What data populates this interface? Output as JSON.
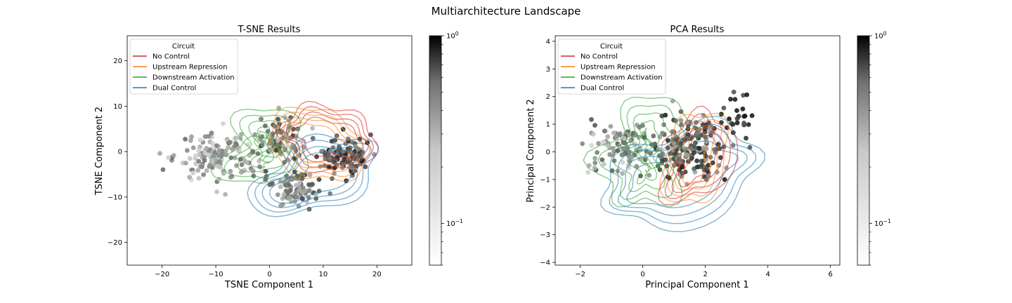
{
  "figure": {
    "title": "Multiarchitecture Landscape"
  },
  "legend_title": "Circuit",
  "colors": {
    "No Control": "#d62728",
    "Upstream Repression": "#ff7f0e",
    "Downstream Activation": "#2ca02c",
    "Dual Control": "#1f77b4",
    "point_dark": "#1a1a1a",
    "point_light": "#e6e6e6"
  },
  "chart_data": [
    {
      "type": "scatter",
      "title": "T-SNE Results",
      "xlabel": "TSNE Component 1",
      "ylabel": "TSNE Component 2",
      "xlim": [
        -26.5,
        26.5
      ],
      "ylim": [
        -25,
        25.5
      ],
      "xticks": [
        -20,
        -10,
        0,
        10,
        20
      ],
      "yticks": [
        -20,
        -10,
        0,
        10,
        20
      ],
      "legend_placement": "top-left",
      "series": [
        {
          "name": "No Control",
          "centers": [
            [
              14,
              2
            ],
            [
              8,
              4
            ]
          ],
          "spread": [
            6,
            7
          ]
        },
        {
          "name": "Upstream Repression",
          "centers": [
            [
              11,
              0
            ],
            [
              7,
              3
            ]
          ],
          "spread": [
            7,
            8
          ]
        },
        {
          "name": "Downstream Activation",
          "centers": [
            [
              -8,
              2
            ],
            [
              6,
              0
            ]
          ],
          "spread": [
            14,
            9
          ]
        },
        {
          "name": "Dual Control",
          "centers": [
            [
              12,
              -2
            ],
            [
              5,
              -9
            ]
          ],
          "spread": [
            8,
            8
          ]
        }
      ],
      "point_clusters": [
        {
          "center": [
            -10,
            -1
          ],
          "spread": [
            7,
            5
          ],
          "count": 150,
          "density": [
            0.1,
            0.6
          ]
        },
        {
          "center": [
            2,
            3
          ],
          "spread": [
            4,
            4
          ],
          "count": 90,
          "density": [
            0.2,
            0.9
          ]
        },
        {
          "center": [
            14,
            -1
          ],
          "spread": [
            4,
            4
          ],
          "count": 130,
          "density": [
            0.4,
            1.0
          ]
        },
        {
          "center": [
            5,
            -8
          ],
          "spread": [
            5,
            4
          ],
          "count": 90,
          "density": [
            0.2,
            0.8
          ]
        }
      ],
      "colorbar": {
        "scale": "log",
        "range": [
          0.06,
          1.0
        ],
        "ticks": [
          "10^0",
          "10^-1"
        ]
      }
    },
    {
      "type": "scatter",
      "title": "PCA Results",
      "xlabel": "Principal Component 1",
      "ylabel": "Principal Component 2",
      "xlim": [
        -2.8,
        6.3
      ],
      "ylim": [
        -4.1,
        4.2
      ],
      "xticks": [
        -2,
        0,
        2,
        4,
        6
      ],
      "yticks": [
        -4,
        -3,
        -2,
        -1,
        0,
        1,
        2,
        3,
        4
      ],
      "legend_placement": "top-left",
      "series": [
        {
          "name": "No Control",
          "centers": [
            [
              1.5,
              0.2
            ],
            [
              2.0,
              -0.6
            ]
          ],
          "spread": [
            1.4,
            1.6
          ]
        },
        {
          "name": "Upstream Repression",
          "centers": [
            [
              1.2,
              0.0
            ],
            [
              2.2,
              -0.5
            ]
          ],
          "spread": [
            1.5,
            1.7
          ]
        },
        {
          "name": "Downstream Activation",
          "centers": [
            [
              -1.0,
              0.3
            ],
            [
              1.2,
              -0.3
            ]
          ],
          "spread": [
            2.6,
            1.9
          ]
        },
        {
          "name": "Dual Control",
          "centers": [
            [
              2.0,
              -0.3
            ],
            [
              0.5,
              -1.5
            ]
          ],
          "spread": [
            1.8,
            1.7
          ]
        }
      ],
      "point_clusters": [
        {
          "center": [
            -0.6,
            0.2
          ],
          "spread": [
            1.0,
            0.8
          ],
          "count": 110,
          "density": [
            0.1,
            0.7
          ]
        },
        {
          "center": [
            1.5,
            0.0
          ],
          "spread": [
            1.0,
            1.1
          ],
          "count": 190,
          "density": [
            0.3,
            0.95
          ]
        },
        {
          "center": [
            3.0,
            1.4
          ],
          "spread": [
            0.5,
            0.8
          ],
          "count": 25,
          "density": [
            0.6,
            1.0
          ]
        }
      ],
      "colorbar": {
        "scale": "log",
        "range": [
          0.06,
          1.0
        ],
        "ticks": [
          "10^0",
          "10^-1"
        ]
      }
    }
  ]
}
